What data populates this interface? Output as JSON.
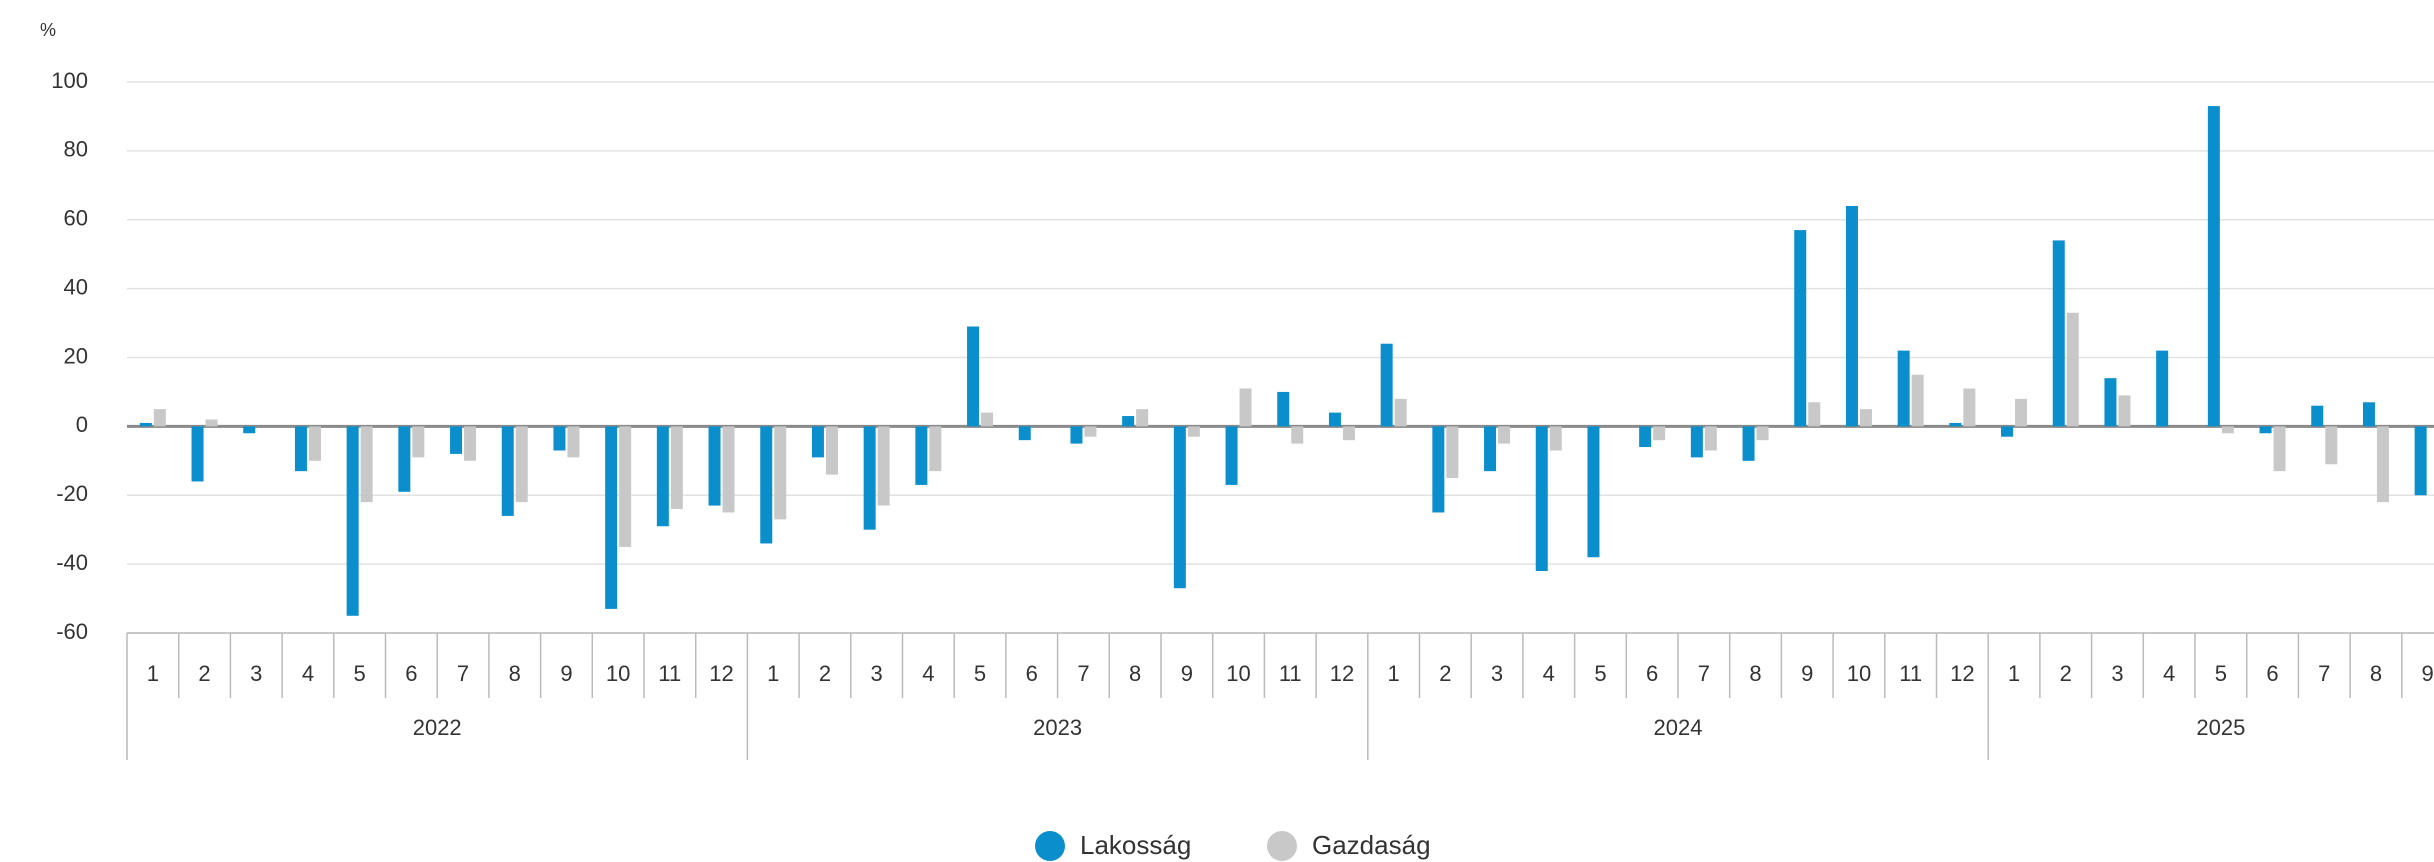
{
  "chart_data": {
    "type": "bar",
    "y_unit": "%",
    "categories": [
      "1",
      "2",
      "3",
      "4",
      "5",
      "6",
      "7",
      "8",
      "9",
      "10",
      "11",
      "12",
      "1",
      "2",
      "3",
      "4",
      "5",
      "6",
      "7",
      "8",
      "9",
      "10",
      "11",
      "12",
      "1",
      "2",
      "3",
      "4",
      "5",
      "6",
      "7",
      "8",
      "9",
      "10",
      "11",
      "12",
      "1",
      "2",
      "3",
      "4",
      "5",
      "6",
      "7",
      "8",
      "9"
    ],
    "x_groups": [
      "2022",
      "2023",
      "2024",
      "2025"
    ],
    "series": [
      {
        "name": "Lakosság",
        "color": "#0a8fcc",
        "values": [
          1,
          -16,
          -2,
          -13,
          -55,
          -19,
          -8,
          -26,
          -7,
          -53,
          -29,
          -23,
          -34,
          -9,
          -30,
          -17,
          29,
          -4,
          -5,
          3,
          -47,
          -17,
          10,
          4,
          24,
          -25,
          -13,
          -42,
          -38,
          -6,
          -9,
          -10,
          57,
          64,
          22,
          1,
          -3,
          54,
          14,
          22,
          93,
          -2,
          6,
          7,
          -20
        ]
      },
      {
        "name": "Gazdaság",
        "color": "#c8c8c8",
        "values": [
          5,
          2,
          0,
          -10,
          -22,
          -9,
          -10,
          -22,
          -9,
          -35,
          -24,
          -25,
          -27,
          -14,
          -23,
          -13,
          4,
          0,
          -3,
          5,
          -3,
          11,
          -5,
          -4,
          8,
          -15,
          -5,
          -7,
          0,
          -4,
          -7,
          -4,
          7,
          5,
          15,
          11,
          8,
          33,
          9,
          0,
          -2,
          -13,
          -11,
          -22,
          null
        ]
      }
    ],
    "ylim": [
      -60,
      100
    ],
    "yticks": [
      -60,
      -40,
      -20,
      0,
      20,
      40,
      60,
      80,
      100
    ],
    "grid": true,
    "legend": "bottom"
  }
}
